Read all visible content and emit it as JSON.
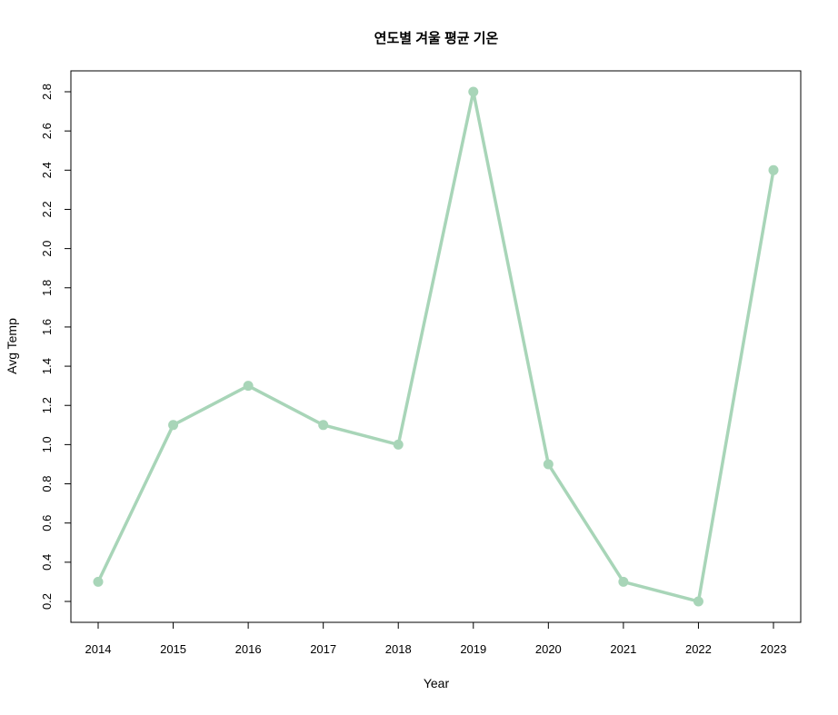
{
  "chart_data": {
    "type": "line",
    "title": "연도별 겨울 평균 기온",
    "xlabel": "Year",
    "ylabel": "Avg Temp",
    "x": [
      "2014",
      "2015",
      "2016",
      "2017",
      "2018",
      "2019",
      "2020",
      "2021",
      "2022",
      "2023"
    ],
    "series": [
      {
        "values": [
          0.3,
          1.1,
          1.3,
          1.1,
          1.0,
          2.8,
          0.9,
          0.3,
          0.2,
          2.4
        ]
      }
    ],
    "ylim": [
      0.2,
      2.8
    ],
    "yticks": [
      "0.2",
      "0.4",
      "0.6",
      "0.8",
      "1.0",
      "1.2",
      "1.4",
      "1.6",
      "1.8",
      "2.0",
      "2.2",
      "2.4",
      "2.6",
      "2.8"
    ],
    "grid": false,
    "legend": "none",
    "line_color": "#a8d5b8",
    "axis_color": "#000000"
  }
}
